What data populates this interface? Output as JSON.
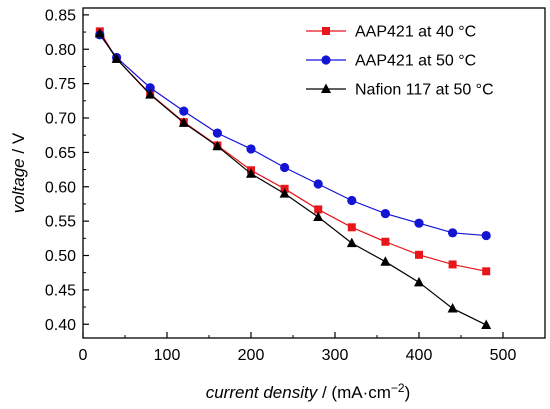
{
  "chart_data": {
    "type": "line",
    "xlabel_italic": "current density",
    "xlabel_unit": "(mA·cm",
    "xlabel_exp": "−2",
    "xlabel_close": ")",
    "ylabel_italic": "voltage",
    "ylabel_unit": "V",
    "label_separator": "/",
    "xlim": [
      0,
      550
    ],
    "ylim": [
      0.38,
      0.86
    ],
    "x_ticks": [
      0,
      100,
      200,
      300,
      400,
      500
    ],
    "y_ticks": [
      0.4,
      0.45,
      0.5,
      0.55,
      0.6,
      0.65,
      0.7,
      0.75,
      0.8,
      0.85
    ],
    "legend_position": "top-right",
    "series": [
      {
        "name": "AAP421 at 40 °C",
        "color": "#e8151a",
        "marker": "square",
        "x": [
          20,
          40,
          80,
          120,
          160,
          200,
          240,
          280,
          320,
          360,
          400,
          440,
          480
        ],
        "y": [
          0.826,
          0.786,
          0.735,
          0.694,
          0.66,
          0.624,
          0.597,
          0.567,
          0.541,
          0.52,
          0.501,
          0.487,
          0.477
        ]
      },
      {
        "name": "AAP421 at 50 °C",
        "color": "#1414d4",
        "marker": "circle",
        "x": [
          20,
          40,
          80,
          120,
          160,
          200,
          240,
          280,
          320,
          360,
          400,
          440,
          480
        ],
        "y": [
          0.821,
          0.788,
          0.744,
          0.71,
          0.678,
          0.655,
          0.628,
          0.604,
          0.58,
          0.561,
          0.547,
          0.533,
          0.529
        ]
      },
      {
        "name": "Nafion 117 at 50 °C",
        "color": "#000000",
        "marker": "triangle",
        "x": [
          20,
          40,
          80,
          120,
          160,
          200,
          240,
          280,
          320,
          360,
          400,
          440,
          480
        ],
        "y": [
          0.823,
          0.786,
          0.734,
          0.693,
          0.659,
          0.619,
          0.59,
          0.556,
          0.518,
          0.491,
          0.461,
          0.423,
          0.399
        ]
      }
    ]
  }
}
